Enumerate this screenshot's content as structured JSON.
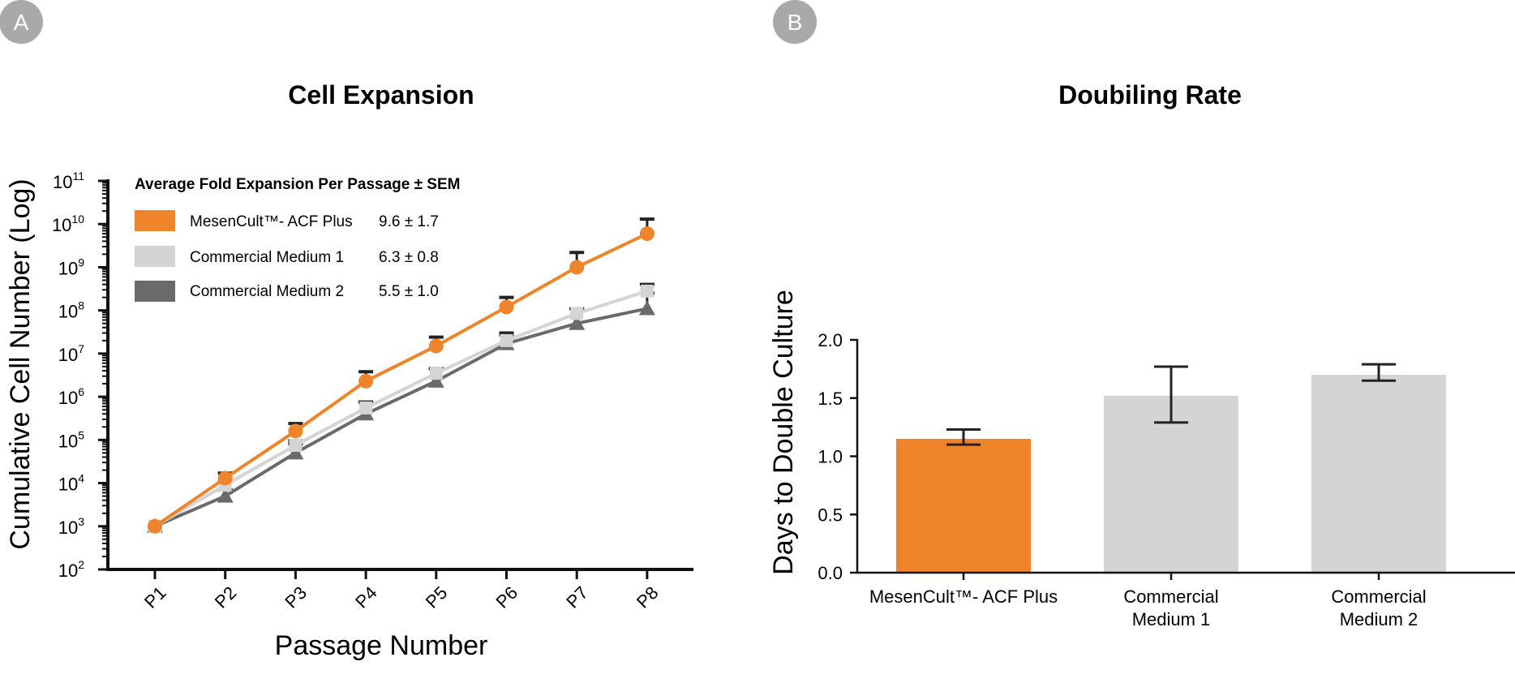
{
  "panels": {
    "a": {
      "badge": "A"
    },
    "b": {
      "badge": "B"
    }
  },
  "colors": {
    "orange": "#F0842A",
    "light_gray": "#D4D4D4",
    "dark_gray": "#6A6A6A",
    "badge": "#A9A9A9",
    "axis": "#111111"
  },
  "chart_data": [
    {
      "type": "line",
      "title": "Cell Expansion",
      "xlabel": "Passage Number",
      "ylabel": "Cumulative Cell Number (Log)",
      "yscale": "log",
      "ylim": [
        100,
        100000000000
      ],
      "y_ticks": [
        {
          "base": "10",
          "exp": "2",
          "value": 100
        },
        {
          "base": "10",
          "exp": "3",
          "value": 1000
        },
        {
          "base": "10",
          "exp": "4",
          "value": 10000
        },
        {
          "base": "10",
          "exp": "5",
          "value": 100000
        },
        {
          "base": "10",
          "exp": "6",
          "value": 1000000
        },
        {
          "base": "10",
          "exp": "7",
          "value": 10000000
        },
        {
          "base": "10",
          "exp": "8",
          "value": 100000000
        },
        {
          "base": "10",
          "exp": "9",
          "value": 1000000000
        },
        {
          "base": "10",
          "exp": "10",
          "value": 10000000000
        },
        {
          "base": "10",
          "exp": "11",
          "value": 100000000000
        }
      ],
      "categories": [
        "P1",
        "P2",
        "P3",
        "P4",
        "P5",
        "P6",
        "P7",
        "P8"
      ],
      "legend_title": "Average Fold Expansion Per Passage ± SEM",
      "series": [
        {
          "name": "MesenCult™- ACF Plus",
          "stat": "9.6 ± 1.7",
          "color": "#F0842A",
          "marker": "circle",
          "values": [
            1000,
            13000,
            160000,
            2300000,
            15000000,
            120000000,
            1000000000,
            6000000000
          ],
          "error_upper": [
            1000,
            17000,
            240000,
            3800000,
            24000000,
            200000000,
            2200000000,
            13000000000
          ]
        },
        {
          "name": "Commercial Medium 1",
          "stat": "6.3 ± 0.8",
          "color": "#D4D4D4",
          "marker": "square",
          "values": [
            1000,
            9000,
            75000,
            550000,
            3500000,
            20000000,
            85000000,
            280000000
          ],
          "error_upper": [
            1000,
            11000,
            95000,
            750000,
            4500000,
            27000000,
            110000000,
            400000000
          ]
        },
        {
          "name": "Commercial Medium 2",
          "stat": "5.5 ± 1.0",
          "color": "#6A6A6A",
          "marker": "triangle",
          "values": [
            1000,
            5000,
            50000,
            400000,
            2300000,
            17000000,
            50000000,
            110000000
          ],
          "error_upper": [
            1000,
            7000,
            80000,
            750000,
            4500000,
            30000000,
            110000000,
            250000000
          ]
        }
      ]
    },
    {
      "type": "bar",
      "title": "Doubiling Rate",
      "ylabel": "Days to Double Culture",
      "ylim": [
        0,
        2.0
      ],
      "y_ticks": [
        "0.0",
        "0.5",
        "1.0",
        "1.5",
        "2.0"
      ],
      "categories": [
        [
          "MesenCult™- ACF Plus"
        ],
        [
          "Commercial",
          "Medium 1"
        ],
        [
          "Commercial",
          "Medium 2"
        ]
      ],
      "values": [
        1.15,
        1.52,
        1.7
      ],
      "error_low": [
        1.1,
        1.29,
        1.65
      ],
      "error_high": [
        1.23,
        1.77,
        1.79
      ],
      "bar_colors": [
        "#F0842A",
        "#D4D4D4",
        "#D4D4D4"
      ]
    }
  ]
}
